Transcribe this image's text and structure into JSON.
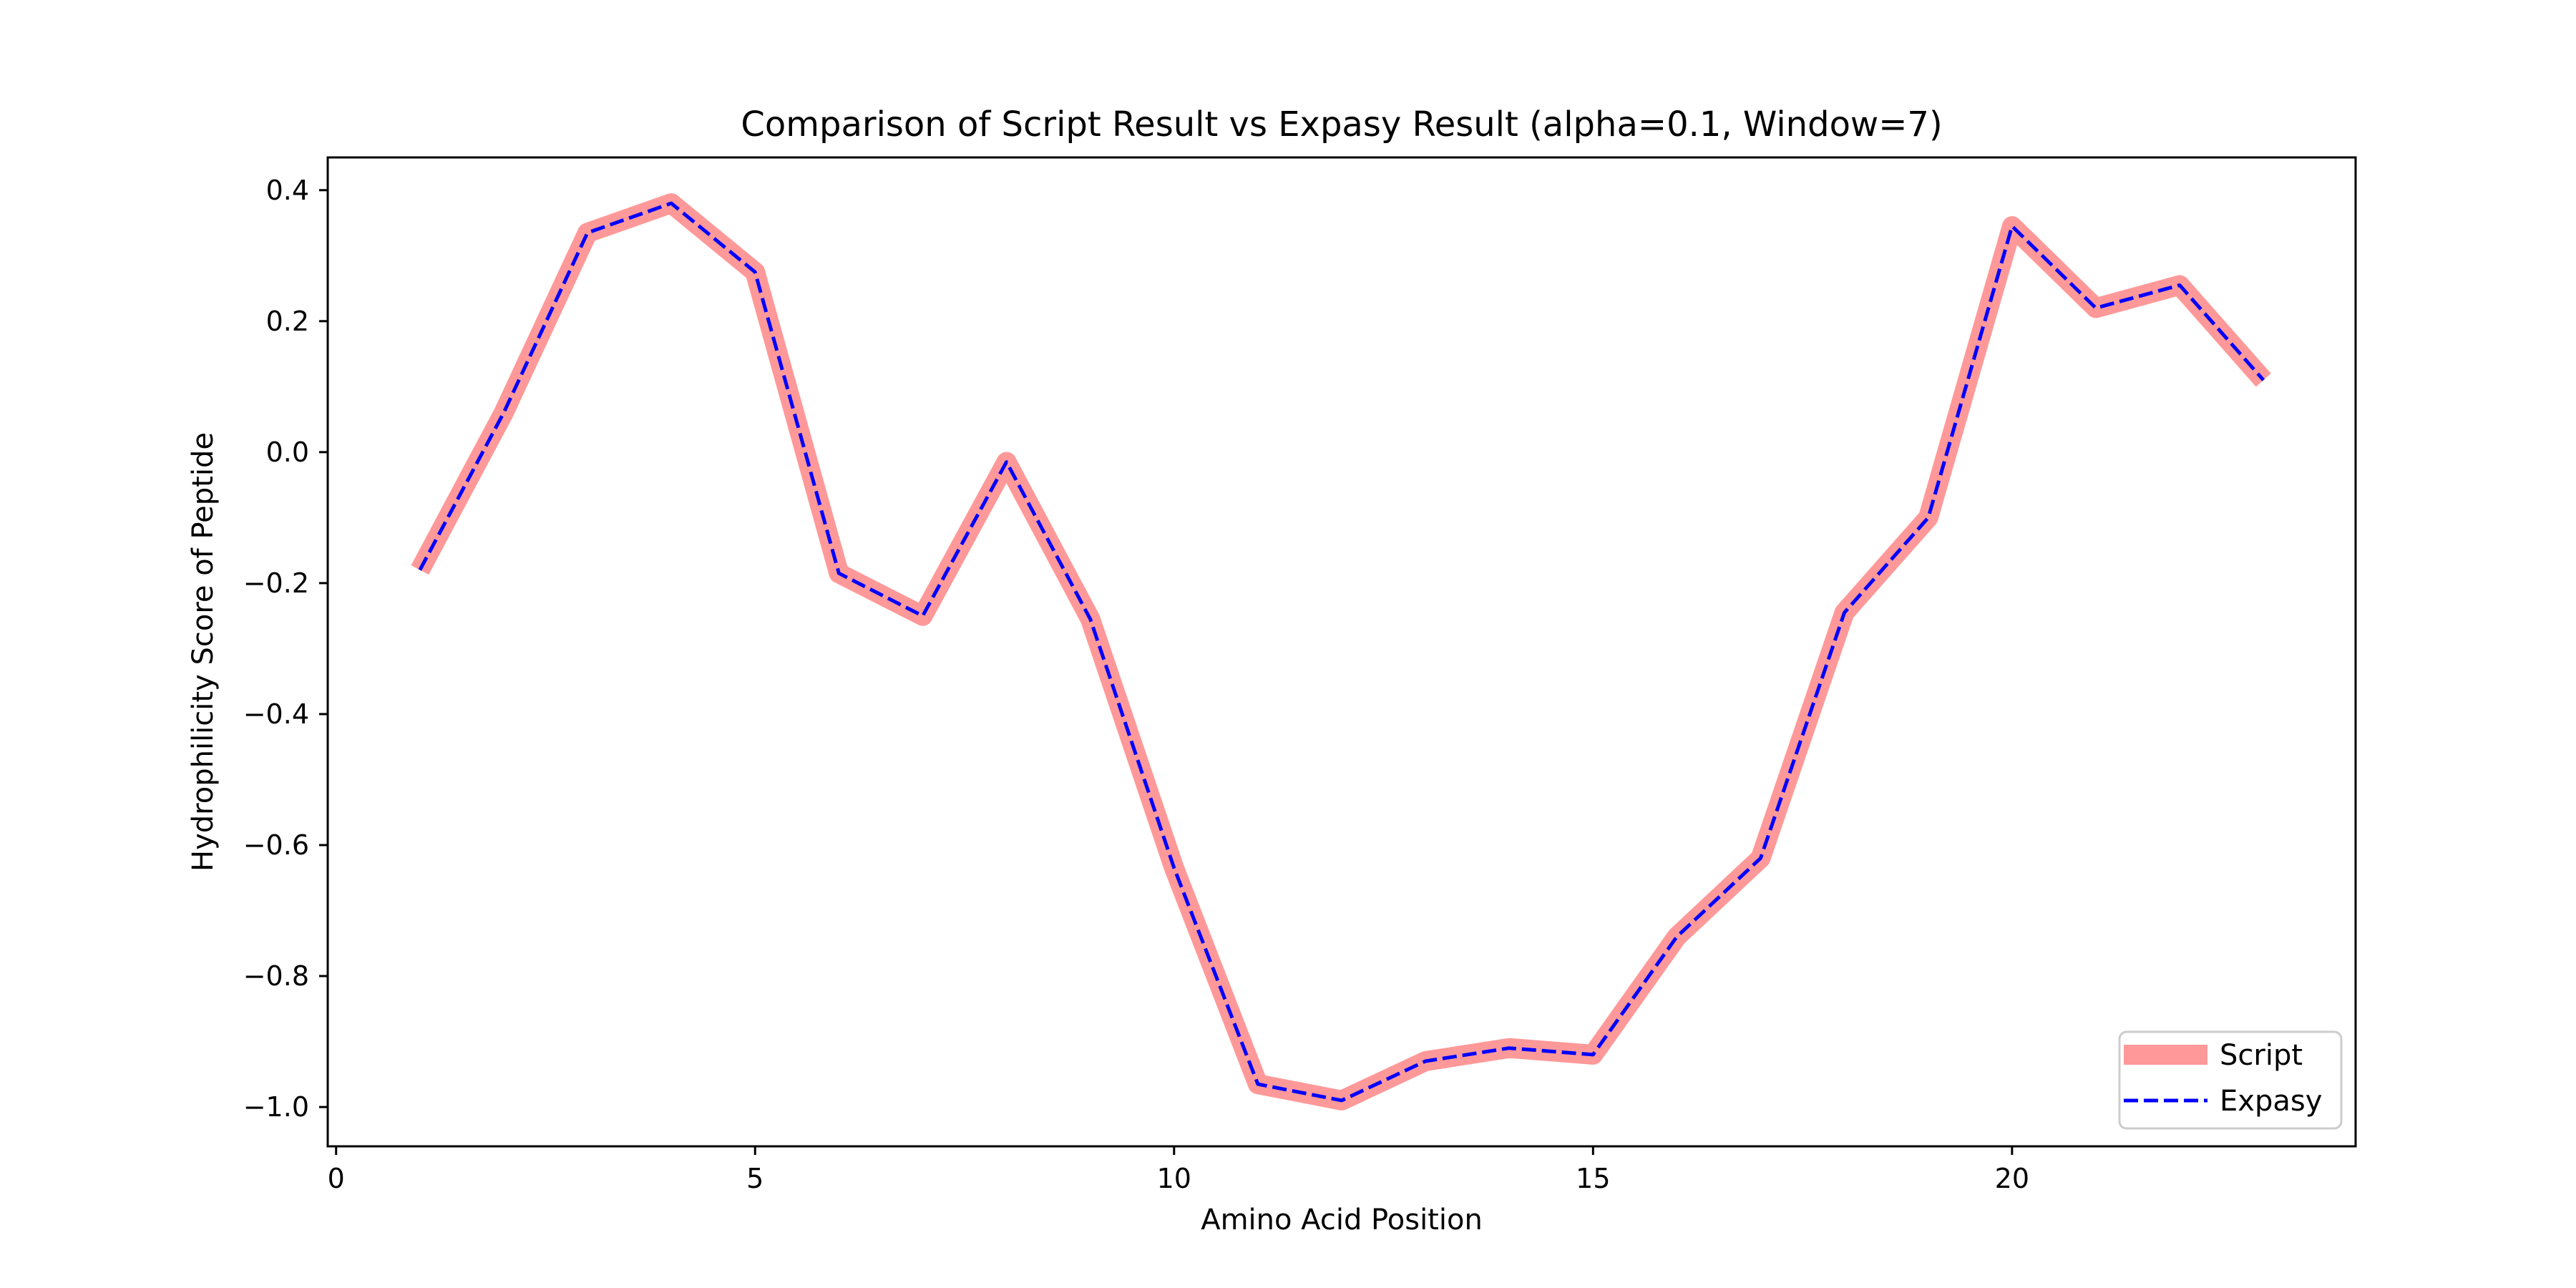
{
  "chart_data": {
    "type": "line",
    "title": "Comparison of Script Result vs Expasy Result (alpha=0.1, Window=7)",
    "xlabel": "Amino Acid Position",
    "ylabel": "Hydrophilicity Score of Peptide",
    "xlim": [
      -0.1,
      24.1
    ],
    "ylim": [
      -1.06,
      0.45
    ],
    "xticks": [
      0,
      5,
      10,
      15,
      20
    ],
    "yticks": [
      0.4,
      0.2,
      0.0,
      -0.2,
      -0.4,
      -0.6,
      -0.8,
      -1.0
    ],
    "ytick_labels": [
      "0.4",
      "0.2",
      "0.0",
      "−0.2",
      "−0.4",
      "−0.6",
      "−0.8",
      "−1.0"
    ],
    "legend": {
      "position": "lower-right"
    },
    "grid": false,
    "x": [
      1,
      2,
      3,
      4,
      5,
      6,
      7,
      8,
      9,
      10,
      11,
      12,
      13,
      14,
      15,
      16,
      17,
      18,
      19,
      20,
      21,
      22,
      23
    ],
    "series": [
      {
        "name": "Script",
        "color": "#ff9999",
        "style": "solid-thick",
        "values": [
          -0.18,
          0.06,
          0.335,
          0.38,
          0.275,
          -0.185,
          -0.25,
          -0.015,
          -0.255,
          -0.635,
          -0.965,
          -0.99,
          -0.93,
          -0.91,
          -0.92,
          -0.74,
          -0.62,
          -0.245,
          -0.1,
          0.345,
          0.22,
          0.255,
          0.11
        ]
      },
      {
        "name": "Expasy",
        "color": "#0000ff",
        "style": "dashed",
        "values": [
          -0.18,
          0.06,
          0.335,
          0.38,
          0.275,
          -0.185,
          -0.25,
          -0.015,
          -0.255,
          -0.635,
          -0.965,
          -0.99,
          -0.93,
          -0.91,
          -0.92,
          -0.74,
          -0.62,
          -0.245,
          -0.1,
          0.345,
          0.22,
          0.255,
          0.11
        ]
      }
    ]
  }
}
